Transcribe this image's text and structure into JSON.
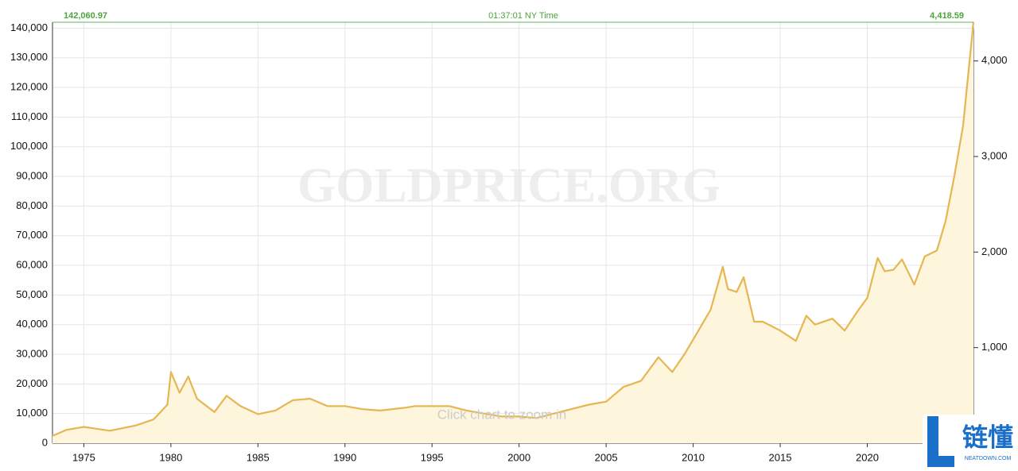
{
  "chart_data": {
    "type": "line",
    "watermark": "GOLDPRICE.ORG",
    "time_label": "01:37:01 NY Time",
    "left_current": "142,060.97",
    "right_current": "4,418.59",
    "hint": "Click chart to zoom in",
    "logo_text": "链懂",
    "logo_site": "NEATDOWN.COM",
    "xlim": [
      1973.2,
      2026.1
    ],
    "xticks": [
      1975,
      1980,
      1985,
      1990,
      1995,
      2000,
      2005,
      2010,
      2015,
      2020
    ],
    "ylim": [
      0,
      142000
    ],
    "yticks": [
      0,
      {
        "value": 10000,
        "label": "10,000"
      },
      {
        "value": 20000,
        "label": "20,000"
      },
      {
        "value": 30000,
        "label": "30,000"
      },
      {
        "value": 40000,
        "label": "40,000"
      },
      {
        "value": 50000,
        "label": "50,000"
      },
      {
        "value": 60000,
        "label": "60,000"
      },
      {
        "value": 70000,
        "label": "70,000"
      },
      {
        "value": 80000,
        "label": "80,000"
      },
      {
        "value": 90000,
        "label": "90,000"
      },
      {
        "value": 100000,
        "label": "100,000"
      },
      {
        "value": 110000,
        "label": "110,000"
      },
      {
        "value": 120000,
        "label": "120,000"
      },
      {
        "value": 130000,
        "label": "130,000"
      },
      {
        "value": 140000,
        "label": "140,000"
      }
    ],
    "y2lim": [
      0,
      4405
    ],
    "y2ticks": [
      {
        "value": 1000,
        "label": "1,000"
      },
      {
        "value": 2000,
        "label": "2,000"
      },
      {
        "value": 3000,
        "label": "3,000"
      },
      {
        "value": 4000,
        "label": "4,000"
      }
    ],
    "grid": true,
    "series": [
      {
        "color": "#e6b652",
        "fill": "#fdf5dc",
        "x": [
          1973.2,
          1974.0,
          1975.0,
          1976.5,
          1977.0,
          1978.0,
          1979.0,
          1979.8,
          1980.0,
          1980.5,
          1981.0,
          1981.5,
          1982.5,
          1983.2,
          1984.0,
          1985.0,
          1986.0,
          1987.0,
          1988.0,
          1989.0,
          1990.0,
          1991.0,
          1992.0,
          1993.5,
          1994.0,
          1996.0,
          1997.0,
          1999.0,
          2000.0,
          2001.0,
          2002.0,
          2003.0,
          2004.0,
          2005.0,
          2006.0,
          2007.0,
          2008.0,
          2008.8,
          2009.5,
          2010.0,
          2011.0,
          2011.7,
          2012.0,
          2012.5,
          2012.9,
          2013.5,
          2014.0,
          2015.0,
          2015.9,
          2016.5,
          2017.0,
          2018.0,
          2018.7,
          2019.5,
          2020.0,
          2020.6,
          2021.0,
          2021.5,
          2022.0,
          2022.7,
          2023.3,
          2024.0,
          2024.5,
          2025.0,
          2025.5,
          2026.1
        ],
        "values": [
          2500,
          4500,
          5500,
          4200,
          4800,
          6000,
          8000,
          13000,
          24000,
          17000,
          22500,
          15000,
          10500,
          16000,
          12500,
          9800,
          11000,
          14500,
          15000,
          12500,
          12500,
          11500,
          11000,
          12000,
          12500,
          12500,
          11000,
          9000,
          9000,
          8500,
          10000,
          11500,
          13000,
          14000,
          19000,
          21000,
          29000,
          24000,
          30000,
          35000,
          45000,
          59500,
          52000,
          51000,
          56000,
          41000,
          41000,
          38000,
          34500,
          43000,
          40000,
          42000,
          38000,
          45000,
          49000,
          62500,
          58000,
          58500,
          62000,
          53500,
          63000,
          65000,
          75000,
          90000,
          107000,
          142060.97
        ]
      }
    ]
  }
}
